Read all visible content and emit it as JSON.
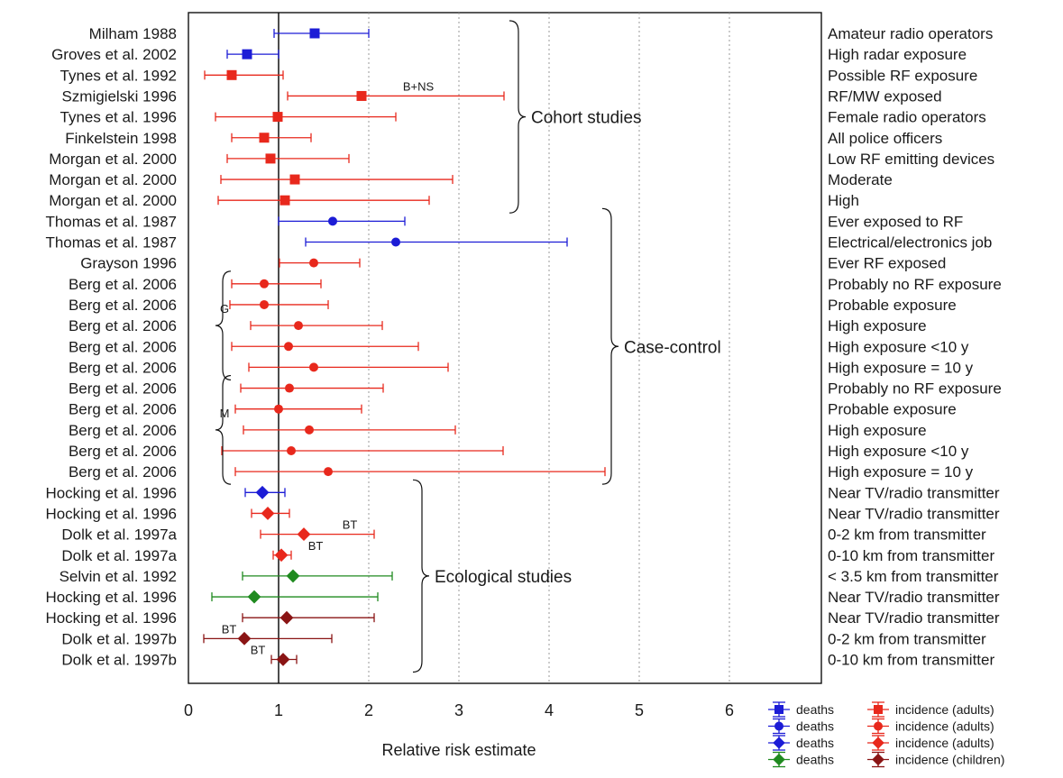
{
  "chart_data": {
    "type": "forest",
    "xlabel": "Relative risk estimate",
    "xlim": [
      0,
      6.8
    ],
    "xticks": [
      0,
      1,
      2,
      3,
      4,
      5,
      6
    ],
    "grid": "vertical dotted",
    "reference_line_x": 1,
    "colors": {
      "blue": "#1c1cd6",
      "red": "#e8281c",
      "green": "#1f8a1f",
      "darkred": "#8a1414"
    },
    "rows": [
      {
        "study": "Milham 1988",
        "exposure": "Amateur radio operators",
        "rr": 1.4,
        "lo": 0.95,
        "hi": 2.0,
        "color": "blue",
        "marker": "square"
      },
      {
        "study": "Groves et al. 2002",
        "exposure": "High radar exposure",
        "rr": 0.65,
        "lo": 0.43,
        "hi": 1.0,
        "color": "blue",
        "marker": "square"
      },
      {
        "study": "Tynes et al. 1992",
        "exposure": "Possible RF exposure",
        "rr": 0.48,
        "lo": 0.18,
        "hi": 1.05,
        "color": "red",
        "marker": "square"
      },
      {
        "study": "Szmigielski 1996",
        "exposure": "RF/MW exposed",
        "rr": 1.92,
        "lo": 1.1,
        "hi": 3.5,
        "color": "red",
        "marker": "square"
      },
      {
        "study": "Tynes et al. 1996",
        "exposure": "Female radio operators",
        "rr": 0.99,
        "lo": 0.3,
        "hi": 2.3,
        "color": "red",
        "marker": "square"
      },
      {
        "study": "Finkelstein 1998",
        "exposure": "All police officers",
        "rr": 0.84,
        "lo": 0.48,
        "hi": 1.36,
        "color": "red",
        "marker": "square"
      },
      {
        "study": "Morgan et al. 2000",
        "exposure": "Low RF emitting devices",
        "rr": 0.91,
        "lo": 0.43,
        "hi": 1.78,
        "color": "red",
        "marker": "square"
      },
      {
        "study": "Morgan et al. 2000",
        "exposure": "Moderate",
        "rr": 1.18,
        "lo": 0.36,
        "hi": 2.93,
        "color": "red",
        "marker": "square"
      },
      {
        "study": "Morgan et al. 2000",
        "exposure": "High",
        "rr": 1.07,
        "lo": 0.33,
        "hi": 2.67,
        "color": "red",
        "marker": "square"
      },
      {
        "study": "Thomas et al. 1987",
        "exposure": "Ever exposed to RF",
        "rr": 1.6,
        "lo": 1.0,
        "hi": 2.4,
        "color": "blue",
        "marker": "circle"
      },
      {
        "study": "Thomas et al. 1987",
        "exposure": "Electrical/electronics job",
        "rr": 2.3,
        "lo": 1.3,
        "hi": 4.2,
        "color": "blue",
        "marker": "circle"
      },
      {
        "study": "Grayson 1996",
        "exposure": "Ever RF exposed",
        "rr": 1.39,
        "lo": 1.01,
        "hi": 1.9,
        "color": "red",
        "marker": "circle"
      },
      {
        "study": "Berg et al. 2006",
        "exposure": "Probably no RF exposure",
        "rr": 0.84,
        "lo": 0.48,
        "hi": 1.47,
        "color": "red",
        "marker": "circle"
      },
      {
        "study": "Berg et al. 2006",
        "exposure": "Probable exposure",
        "rr": 0.84,
        "lo": 0.46,
        "hi": 1.55,
        "color": "red",
        "marker": "circle"
      },
      {
        "study": "Berg et al. 2006",
        "exposure": "High exposure",
        "rr": 1.22,
        "lo": 0.69,
        "hi": 2.15,
        "color": "red",
        "marker": "circle"
      },
      {
        "study": "Berg et al. 2006",
        "exposure": "High exposure <10 y",
        "rr": 1.11,
        "lo": 0.48,
        "hi": 2.55,
        "color": "red",
        "marker": "circle"
      },
      {
        "study": "Berg et al. 2006",
        "exposure": "High exposure = 10 y",
        "rr": 1.39,
        "lo": 0.67,
        "hi": 2.88,
        "color": "red",
        "marker": "circle"
      },
      {
        "study": "Berg et al. 2006",
        "exposure": "Probably no RF exposure",
        "rr": 1.12,
        "lo": 0.58,
        "hi": 2.16,
        "color": "red",
        "marker": "circle"
      },
      {
        "study": "Berg et al. 2006",
        "exposure": "Probable exposure",
        "rr": 1.0,
        "lo": 0.52,
        "hi": 1.92,
        "color": "red",
        "marker": "circle"
      },
      {
        "study": "Berg et al. 2006",
        "exposure": "High exposure",
        "rr": 1.34,
        "lo": 0.61,
        "hi": 2.96,
        "color": "red",
        "marker": "circle"
      },
      {
        "study": "Berg et al. 2006",
        "exposure": "High exposure <10 y",
        "rr": 1.14,
        "lo": 0.37,
        "hi": 3.49,
        "color": "red",
        "marker": "circle"
      },
      {
        "study": "Berg et al. 2006",
        "exposure": "High exposure = 10 y",
        "rr": 1.55,
        "lo": 0.52,
        "hi": 4.62,
        "color": "red",
        "marker": "circle"
      },
      {
        "study": "Hocking et al. 1996",
        "exposure": "Near TV/radio transmitter",
        "rr": 0.82,
        "lo": 0.63,
        "hi": 1.07,
        "color": "blue",
        "marker": "diamond"
      },
      {
        "study": "Hocking et al. 1996",
        "exposure": "Near TV/radio transmitter",
        "rr": 0.88,
        "lo": 0.7,
        "hi": 1.12,
        "color": "red",
        "marker": "diamond"
      },
      {
        "study": "Dolk et al. 1997a",
        "exposure": "0-2 km from transmitter",
        "rr": 1.28,
        "lo": 0.8,
        "hi": 2.06,
        "color": "red",
        "marker": "diamond"
      },
      {
        "study": "Dolk et al. 1997a",
        "exposure": "0-10 km from transmitter",
        "rr": 1.03,
        "lo": 0.94,
        "hi": 1.14,
        "color": "red",
        "marker": "diamond"
      },
      {
        "study": "Selvin et al. 1992",
        "exposure": "< 3.5 km from transmitter",
        "rr": 1.16,
        "lo": 0.6,
        "hi": 2.26,
        "color": "green",
        "marker": "diamond"
      },
      {
        "study": "Hocking et al. 1996",
        "exposure": "Near TV/radio transmitter",
        "rr": 0.73,
        "lo": 0.26,
        "hi": 2.1,
        "color": "green",
        "marker": "diamond"
      },
      {
        "study": "Hocking et al. 1996",
        "exposure": "Near TV/radio transmitter",
        "rr": 1.09,
        "lo": 0.6,
        "hi": 2.06,
        "color": "darkred",
        "marker": "diamond"
      },
      {
        "study": "Dolk et al. 1997b",
        "exposure": "0-2 km from transmitter",
        "rr": 0.62,
        "lo": 0.17,
        "hi": 1.59,
        "color": "darkred",
        "marker": "diamond"
      },
      {
        "study": "Dolk et al. 1997b",
        "exposure": "0-10 km from transmitter",
        "rr": 1.05,
        "lo": 0.92,
        "hi": 1.2,
        "color": "darkred",
        "marker": "diamond"
      }
    ],
    "group_labels": [
      {
        "text": "Cohort studies",
        "from_row": 0,
        "to_row": 8,
        "side": "right"
      },
      {
        "text": "Case-control",
        "from_row": 9,
        "to_row": 21,
        "side": "right"
      },
      {
        "text": "Ecological studies",
        "from_row": 22,
        "to_row": 30,
        "side": "right"
      },
      {
        "text": "G",
        "from_row": 12,
        "to_row": 16,
        "side": "left"
      },
      {
        "text": "M",
        "from_row": 17,
        "to_row": 21,
        "side": "left"
      }
    ],
    "annotations": [
      {
        "text": "B+NS",
        "row": 3,
        "x": 2.55
      },
      {
        "text": "BT",
        "row": 24,
        "x": 1.79
      },
      {
        "text": "BT",
        "row": 25,
        "x": 1.41
      },
      {
        "text": "BT",
        "row": 29,
        "x": 0.45
      },
      {
        "text": "BT",
        "row": 30,
        "x": 0.77
      }
    ],
    "legend": {
      "position": "bottom-right",
      "entries": [
        {
          "left_label": "deaths",
          "left_color": "blue",
          "left_marker": "square",
          "right_label": "incidence  (adults)",
          "right_color": "red",
          "right_marker": "square"
        },
        {
          "left_label": "deaths",
          "left_color": "blue",
          "left_marker": "circle",
          "right_label": "incidence  (adults)",
          "right_color": "red",
          "right_marker": "circle"
        },
        {
          "left_label": "deaths",
          "left_color": "blue",
          "left_marker": "diamond",
          "right_label": "incidence  (adults)",
          "right_color": "red",
          "right_marker": "diamond"
        },
        {
          "left_label": "deaths",
          "left_color": "green",
          "left_marker": "diamond",
          "right_label": "incidence (children)",
          "right_color": "darkred",
          "right_marker": "diamond"
        }
      ]
    }
  }
}
